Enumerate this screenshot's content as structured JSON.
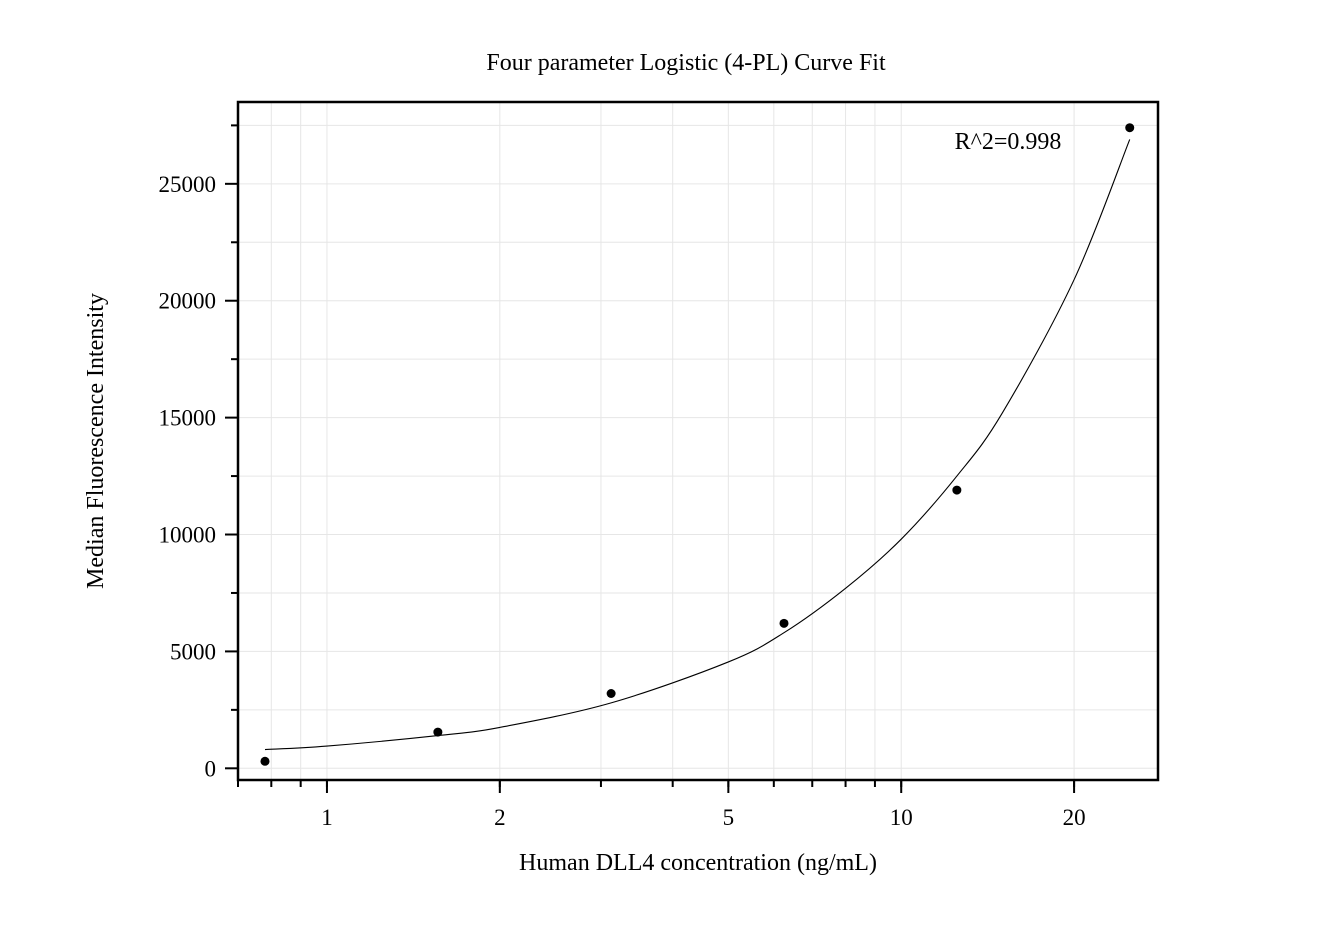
{
  "chart_data": {
    "type": "scatter",
    "title": "Four parameter Logistic (4-PL) Curve Fit",
    "xlabel": "Human DLL4 concentration (ng/mL)",
    "ylabel": "Median Fluorescence Intensity",
    "x_scale": "log",
    "xlim": [
      0.7,
      28
    ],
    "ylim": [
      -500,
      28500
    ],
    "x_ticks": [
      1,
      2,
      5,
      10,
      20
    ],
    "x_tick_labels": [
      "1",
      "2",
      "5",
      "10",
      "20"
    ],
    "y_ticks": [
      0,
      5000,
      10000,
      15000,
      20000,
      25000
    ],
    "y_tick_labels": [
      "0",
      "5000",
      "10000",
      "15000",
      "20000",
      "25000"
    ],
    "grid": true,
    "annotation": "R^2=0.998",
    "series": [
      {
        "points": [
          {
            "x": 0.78,
            "y": 300
          },
          {
            "x": 1.56,
            "y": 1550
          },
          {
            "x": 3.125,
            "y": 3200
          },
          {
            "x": 6.25,
            "y": 6200
          },
          {
            "x": 12.5,
            "y": 11900
          },
          {
            "x": 25,
            "y": 27400
          }
        ]
      }
    ],
    "fit_curve": {
      "model": "4PL",
      "points": [
        {
          "x": 0.78,
          "y": 800
        },
        {
          "x": 1.0,
          "y": 950
        },
        {
          "x": 1.56,
          "y": 1400
        },
        {
          "x": 2.0,
          "y": 1750
        },
        {
          "x": 3.125,
          "y": 2800
        },
        {
          "x": 5.0,
          "y": 4550
        },
        {
          "x": 6.25,
          "y": 5800
        },
        {
          "x": 8.0,
          "y": 7700
        },
        {
          "x": 10.0,
          "y": 9800
        },
        {
          "x": 12.5,
          "y": 12500
        },
        {
          "x": 15.0,
          "y": 15200
        },
        {
          "x": 20.0,
          "y": 20900
        },
        {
          "x": 25.0,
          "y": 26900
        }
      ]
    }
  }
}
